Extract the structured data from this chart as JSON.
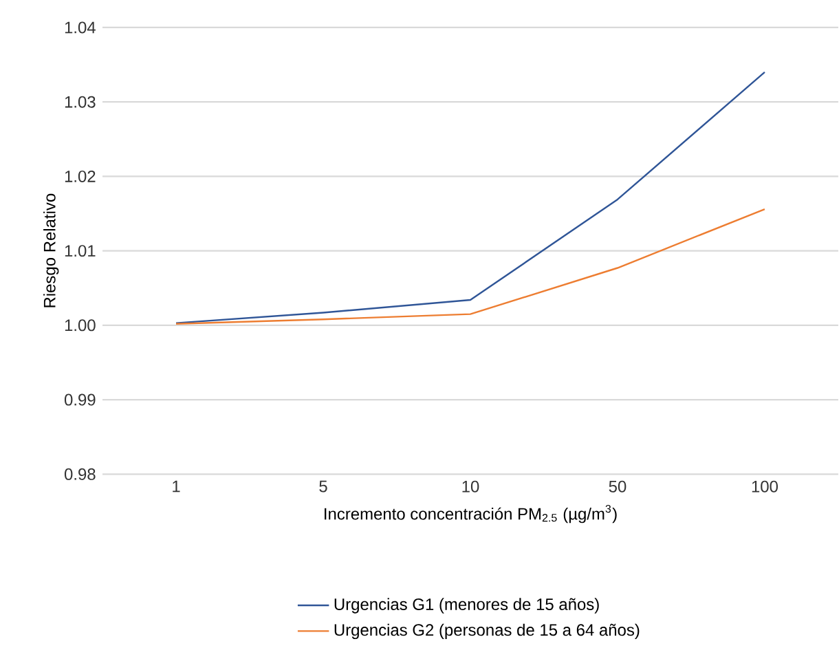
{
  "chart_data": {
    "type": "line",
    "xlabel": "Incremento concentración PM$_{2.5}$ (µg/m$^{3}$)",
    "ylabel": "Riesgo Relativo",
    "categories": [
      "1",
      "5",
      "10",
      "50",
      "100"
    ],
    "series": [
      {
        "name": "Urgencias G1 (menores de 15 años)",
        "color": "#2f5597",
        "values": [
          1.0003,
          1.0017,
          1.0034,
          1.0169,
          1.034
        ]
      },
      {
        "name": "Urgencias G2 (personas de 15 a 64 años)",
        "color": "#ed7d31",
        "values": [
          1.0002,
          1.0008,
          1.0015,
          1.0077,
          1.0156
        ]
      }
    ],
    "ylim": [
      0.98,
      1.04
    ],
    "yticks": [
      {
        "value": 0.98,
        "label": "0.98"
      },
      {
        "value": 0.99,
        "label": "0.99"
      },
      {
        "value": 1.0,
        "label": "1.00"
      },
      {
        "value": 1.01,
        "label": "1.01"
      },
      {
        "value": 1.02,
        "label": "1.02"
      },
      {
        "value": 1.03,
        "label": "1.03"
      },
      {
        "value": 1.04,
        "label": "1.04"
      }
    ],
    "grid": "y",
    "legend": "bottom",
    "marker": "none",
    "line_style": "solid"
  }
}
